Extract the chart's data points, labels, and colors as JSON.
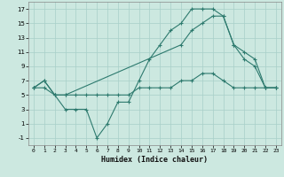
{
  "title": "",
  "xlabel": "Humidex (Indice chaleur)",
  "bg_color": "#cce8e0",
  "grid_color": "#a8cfc8",
  "line_color": "#2d7a6e",
  "xlim": [
    -0.5,
    23.5
  ],
  "ylim": [
    -2,
    18
  ],
  "xticks": [
    0,
    1,
    2,
    3,
    4,
    5,
    6,
    7,
    8,
    9,
    10,
    11,
    12,
    13,
    14,
    15,
    16,
    17,
    18,
    19,
    20,
    21,
    22,
    23
  ],
  "yticks": [
    -1,
    1,
    3,
    5,
    7,
    9,
    11,
    13,
    15,
    17
  ],
  "curve1_x": [
    0,
    1,
    2,
    3,
    4,
    5,
    6,
    7,
    8,
    9,
    10,
    11,
    12,
    13,
    14,
    15,
    16,
    17,
    18,
    19,
    20,
    21,
    22,
    23
  ],
  "curve1_y": [
    6,
    7,
    5,
    3,
    3,
    3,
    -1,
    1,
    4,
    4,
    7,
    10,
    12,
    14,
    15,
    17,
    17,
    17,
    16,
    12,
    10,
    9,
    6,
    6
  ],
  "curve2_x": [
    0,
    1,
    2,
    3,
    14,
    15,
    16,
    17,
    18,
    19,
    20,
    21,
    22,
    23
  ],
  "curve2_y": [
    6,
    7,
    5,
    5,
    12,
    14,
    15,
    16,
    16,
    12,
    11,
    10,
    6,
    6
  ],
  "curve3_x": [
    0,
    1,
    2,
    3,
    4,
    5,
    6,
    7,
    8,
    9,
    10,
    11,
    12,
    13,
    14,
    15,
    16,
    17,
    18,
    19,
    20,
    21,
    22,
    23
  ],
  "curve3_y": [
    6,
    6,
    5,
    5,
    5,
    5,
    5,
    5,
    5,
    5,
    6,
    6,
    6,
    6,
    7,
    7,
    8,
    8,
    7,
    6,
    6,
    6,
    6,
    6
  ]
}
